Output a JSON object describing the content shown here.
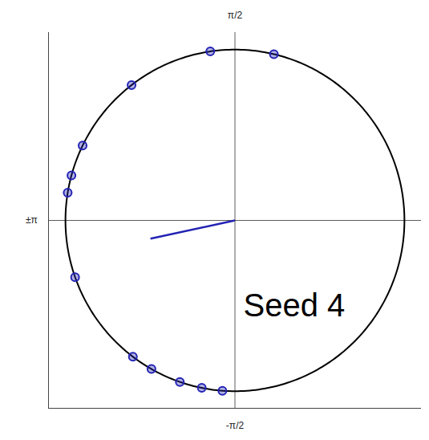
{
  "chart_data": {
    "type": "circular_scatter",
    "annotation": "Seed 4",
    "angles": [
      1.717,
      1.339,
      2.227,
      2.688,
      2.875,
      2.979,
      -2.803,
      -2.217,
      -2.086,
      -1.902,
      -1.768,
      -1.645
    ],
    "mean_vector": {
      "angle": -2.93,
      "length": 0.51
    },
    "angle_ticks": [
      {
        "value": 1.5708,
        "label": "π/2"
      },
      {
        "value": -1.5708,
        "label": "-π/2"
      },
      {
        "value": 3.1416,
        "label": "±π"
      }
    ],
    "xlim": [
      -1.1,
      1.1
    ],
    "ylim": [
      -1.1,
      1.1
    ],
    "tick_labels": false,
    "grid": true,
    "color": "#2323b4",
    "marker": "circle"
  }
}
